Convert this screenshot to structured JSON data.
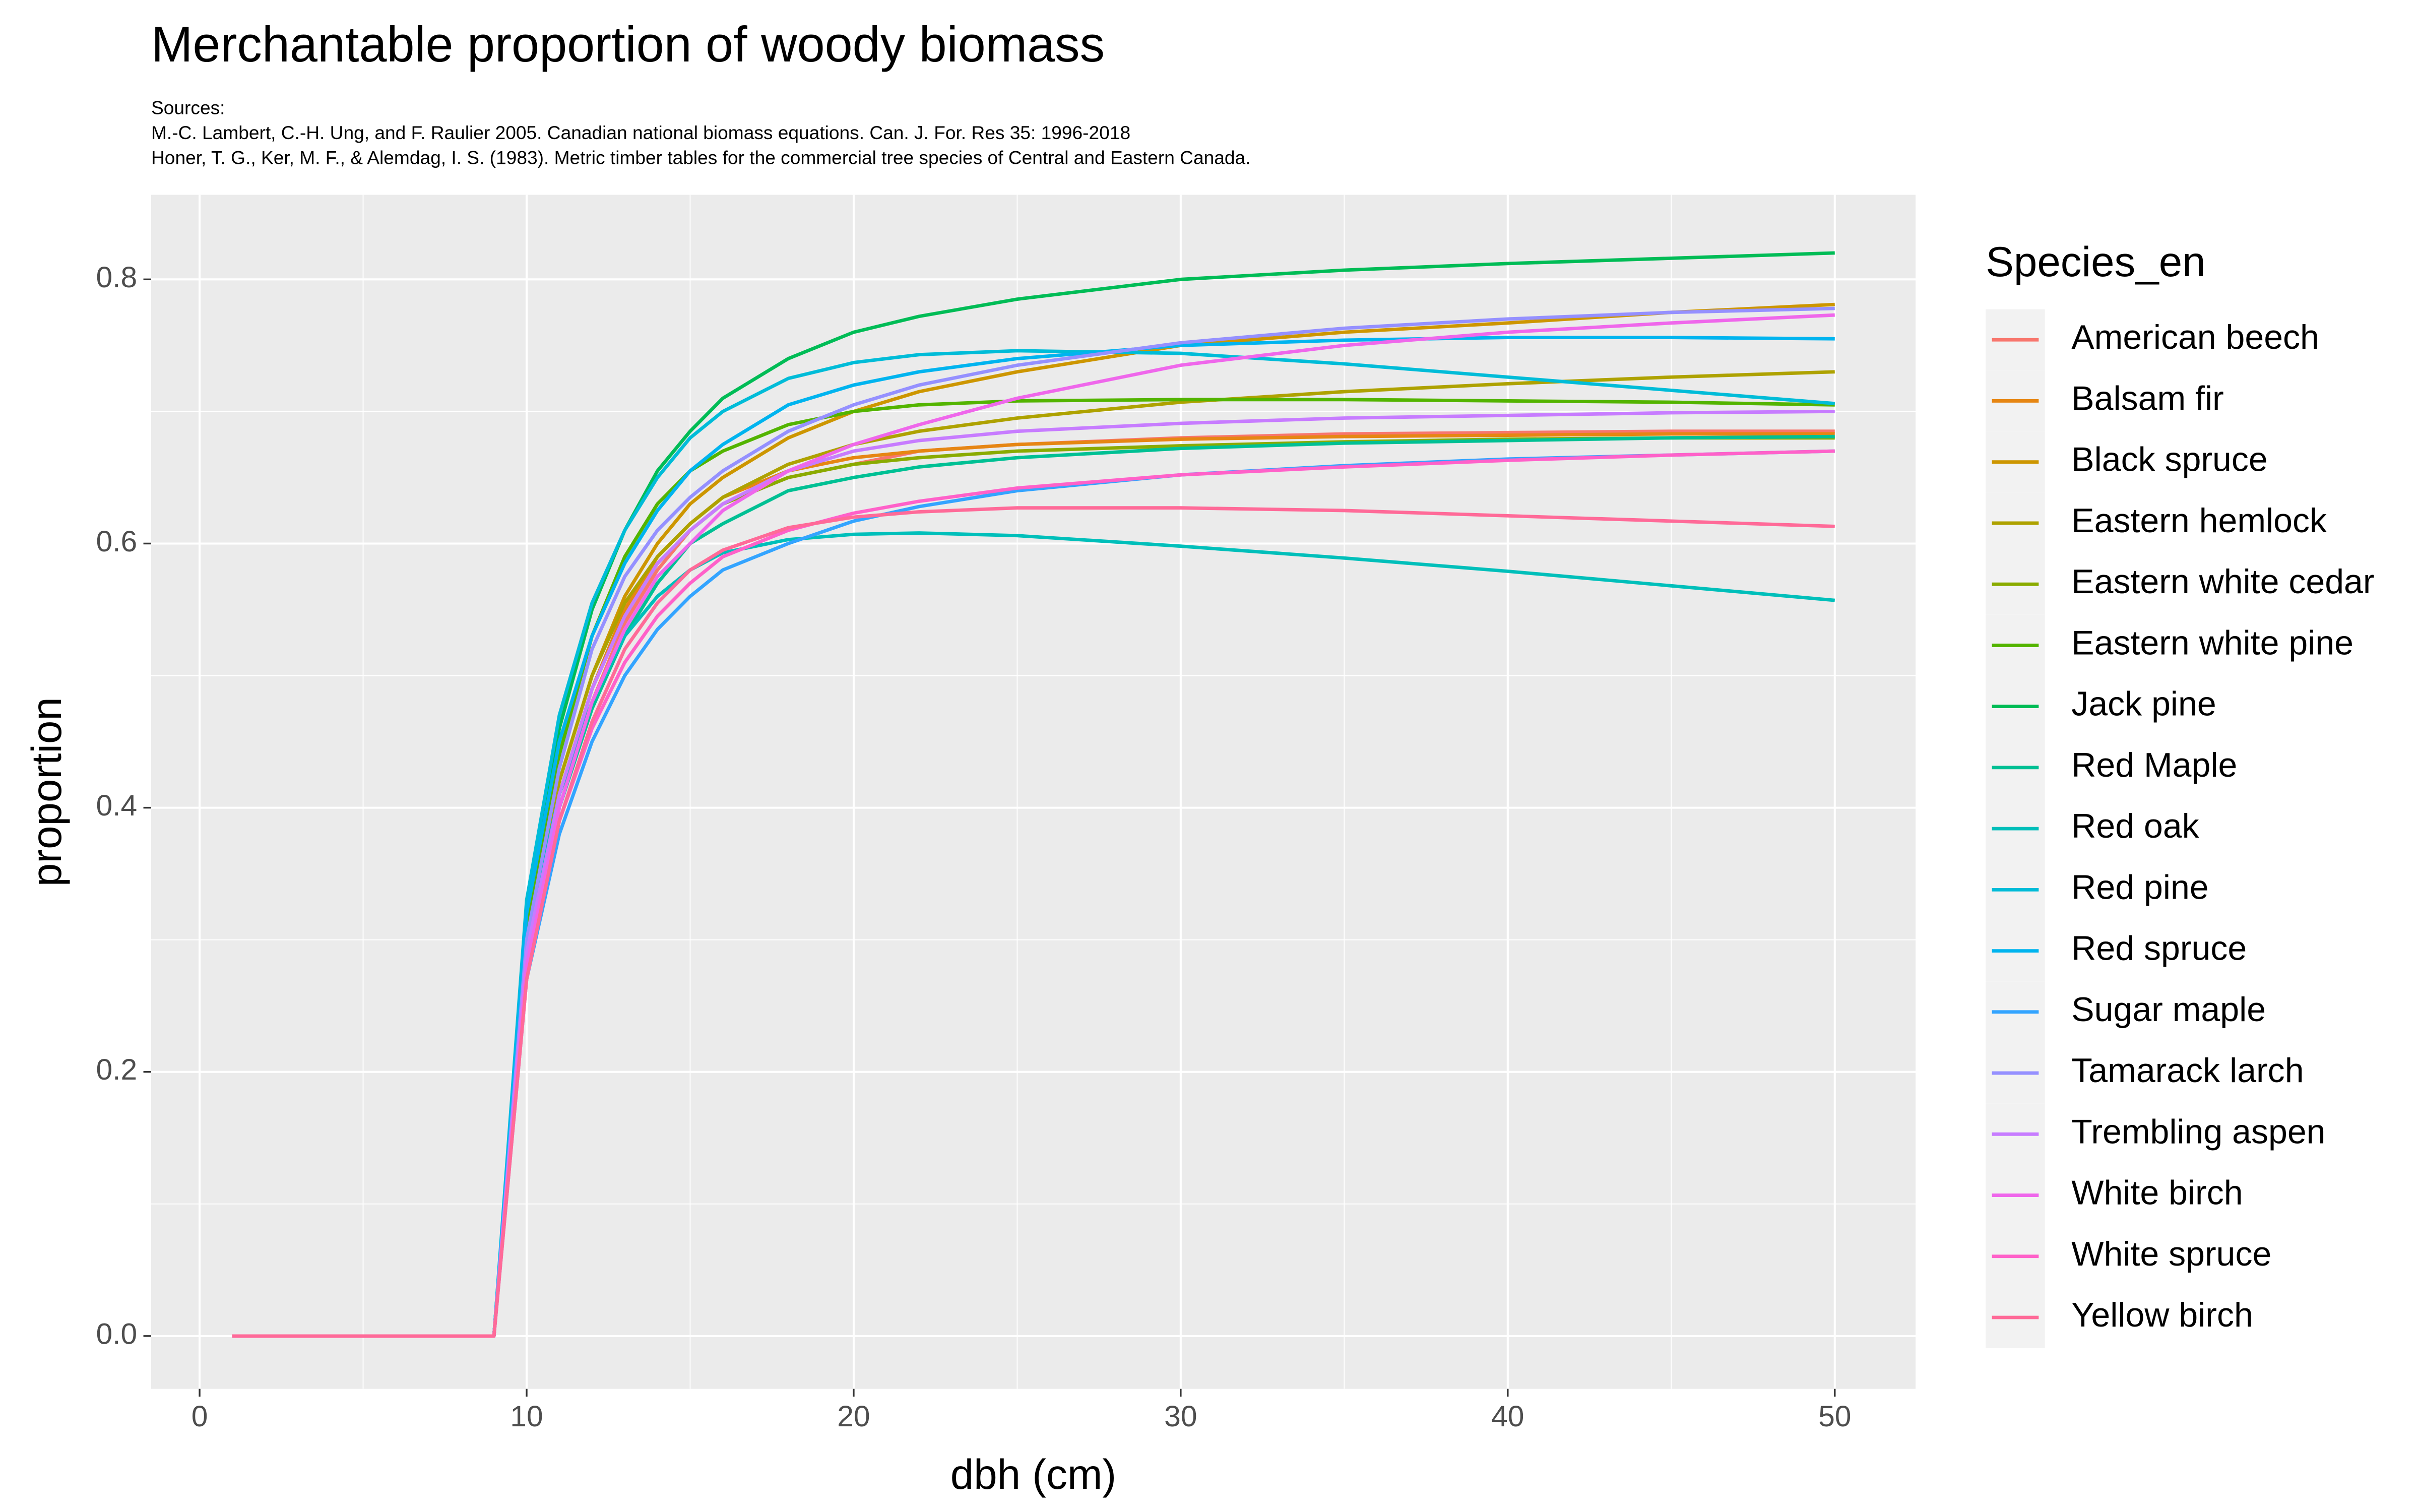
{
  "chart_data": {
    "type": "line",
    "title": "Merchantable proportion of woody biomass",
    "subtitle": [
      "Sources:",
      "M.-C. Lambert, C.-H. Ung, and F. Raulier 2005. Canadian national biomass equations. Can. J. For. Res 35: 1996-2018",
      "Honer, T. G., Ker, M. F., & Alemdag, I. S. (1983). Metric timber tables for the commercial tree species of Central and Eastern Canada."
    ],
    "x_label": "dbh (cm)",
    "y_label": "proportion",
    "legend_title": "Species_en",
    "legend_position": "right",
    "grid": true,
    "xlim": [
      -1.48,
      52.47
    ],
    "ylim": [
      -0.04,
      0.864
    ],
    "xticks": [
      0,
      10,
      20,
      30,
      40,
      50
    ],
    "yticks": [
      {
        "value": 0,
        "label": "0.0"
      },
      0.2,
      0.4,
      0.6,
      0.8
    ],
    "x": [
      1,
      9,
      10,
      11,
      12,
      13,
      14,
      15,
      16,
      18,
      20,
      22,
      25,
      30,
      35,
      40,
      45,
      50
    ],
    "series": [
      {
        "name": "American beech",
        "color": "#F8766D",
        "values": [
          0,
          0,
          0.28,
          0.4,
          0.48,
          0.54,
          0.58,
          0.61,
          0.63,
          0.65,
          0.66,
          0.67,
          0.675,
          0.68,
          0.683,
          0.684,
          0.685,
          0.685
        ]
      },
      {
        "name": "Balsam fir",
        "color": "#E68613",
        "values": [
          0,
          0,
          0.29,
          0.41,
          0.49,
          0.55,
          0.59,
          0.615,
          0.635,
          0.655,
          0.665,
          0.67,
          0.675,
          0.679,
          0.681,
          0.682,
          0.683,
          0.683
        ]
      },
      {
        "name": "Black spruce",
        "color": "#CD9600",
        "values": [
          0,
          0,
          0.3,
          0.42,
          0.5,
          0.56,
          0.6,
          0.63,
          0.65,
          0.68,
          0.7,
          0.715,
          0.73,
          0.75,
          0.76,
          0.767,
          0.775,
          0.781
        ]
      },
      {
        "name": "Eastern hemlock",
        "color": "#AEA200",
        "values": [
          0,
          0,
          0.3,
          0.42,
          0.5,
          0.555,
          0.59,
          0.615,
          0.635,
          0.66,
          0.675,
          0.685,
          0.695,
          0.707,
          0.715,
          0.721,
          0.726,
          0.73
        ]
      },
      {
        "name": "Eastern white cedar",
        "color": "#8AAB00",
        "values": [
          0,
          0,
          0.29,
          0.41,
          0.49,
          0.545,
          0.585,
          0.61,
          0.63,
          0.65,
          0.66,
          0.665,
          0.67,
          0.674,
          0.677,
          0.679,
          0.68,
          0.68
        ]
      },
      {
        "name": "Eastern white pine",
        "color": "#53B400",
        "values": [
          0,
          0,
          0.31,
          0.44,
          0.53,
          0.59,
          0.63,
          0.655,
          0.67,
          0.69,
          0.7,
          0.705,
          0.708,
          0.709,
          0.709,
          0.708,
          0.707,
          0.705
        ]
      },
      {
        "name": "Jack pine",
        "color": "#00BC56",
        "values": [
          0,
          0,
          0.32,
          0.46,
          0.55,
          0.61,
          0.655,
          0.685,
          0.71,
          0.74,
          0.76,
          0.772,
          0.785,
          0.8,
          0.807,
          0.812,
          0.816,
          0.82
        ]
      },
      {
        "name": "Red Maple",
        "color": "#00C094",
        "values": [
          0,
          0,
          0.28,
          0.4,
          0.475,
          0.53,
          0.57,
          0.6,
          0.615,
          0.64,
          0.65,
          0.658,
          0.665,
          0.672,
          0.676,
          0.678,
          0.68,
          0.681
        ]
      },
      {
        "name": "Red oak",
        "color": "#00BFBA",
        "values": [
          0,
          0,
          0.3,
          0.41,
          0.48,
          0.53,
          0.56,
          0.58,
          0.593,
          0.603,
          0.607,
          0.608,
          0.606,
          0.598,
          0.589,
          0.579,
          0.568,
          0.557
        ]
      },
      {
        "name": "Red pine",
        "color": "#00BCD8",
        "values": [
          0,
          0,
          0.33,
          0.47,
          0.555,
          0.61,
          0.65,
          0.68,
          0.7,
          0.725,
          0.737,
          0.743,
          0.746,
          0.744,
          0.736,
          0.726,
          0.716,
          0.706
        ]
      },
      {
        "name": "Red spruce",
        "color": "#00B4EF",
        "values": [
          0,
          0,
          0.32,
          0.45,
          0.53,
          0.585,
          0.625,
          0.655,
          0.675,
          0.705,
          0.72,
          0.73,
          0.74,
          0.75,
          0.754,
          0.756,
          0.756,
          0.755
        ]
      },
      {
        "name": "Sugar maple",
        "color": "#33A4FF",
        "values": [
          0,
          0,
          0.27,
          0.38,
          0.45,
          0.5,
          0.535,
          0.56,
          0.58,
          0.6,
          0.617,
          0.628,
          0.64,
          0.652,
          0.659,
          0.664,
          0.667,
          0.67
        ]
      },
      {
        "name": "Tamarack larch",
        "color": "#9590FF",
        "values": [
          0,
          0,
          0.3,
          0.43,
          0.52,
          0.575,
          0.61,
          0.635,
          0.655,
          0.685,
          0.705,
          0.72,
          0.735,
          0.752,
          0.763,
          0.77,
          0.775,
          0.778
        ]
      },
      {
        "name": "Trembling aspen",
        "color": "#C77CFF",
        "values": [
          0,
          0,
          0.29,
          0.41,
          0.49,
          0.545,
          0.585,
          0.61,
          0.63,
          0.655,
          0.67,
          0.678,
          0.685,
          0.691,
          0.695,
          0.697,
          0.699,
          0.7
        ]
      },
      {
        "name": "White birch",
        "color": "#EF67EB",
        "values": [
          0,
          0,
          0.28,
          0.4,
          0.48,
          0.535,
          0.575,
          0.6,
          0.625,
          0.655,
          0.675,
          0.69,
          0.71,
          0.735,
          0.75,
          0.76,
          0.767,
          0.773
        ]
      },
      {
        "name": "White spruce",
        "color": "#FF61C9",
        "values": [
          0,
          0,
          0.27,
          0.39,
          0.46,
          0.51,
          0.545,
          0.57,
          0.59,
          0.61,
          0.623,
          0.632,
          0.642,
          0.652,
          0.658,
          0.663,
          0.667,
          0.67
        ]
      },
      {
        "name": "Yellow birch",
        "color": "#FF6A98",
        "values": [
          0,
          0,
          0.27,
          0.39,
          0.465,
          0.52,
          0.555,
          0.58,
          0.595,
          0.612,
          0.62,
          0.624,
          0.627,
          0.627,
          0.625,
          0.621,
          0.617,
          0.613
        ]
      }
    ]
  }
}
